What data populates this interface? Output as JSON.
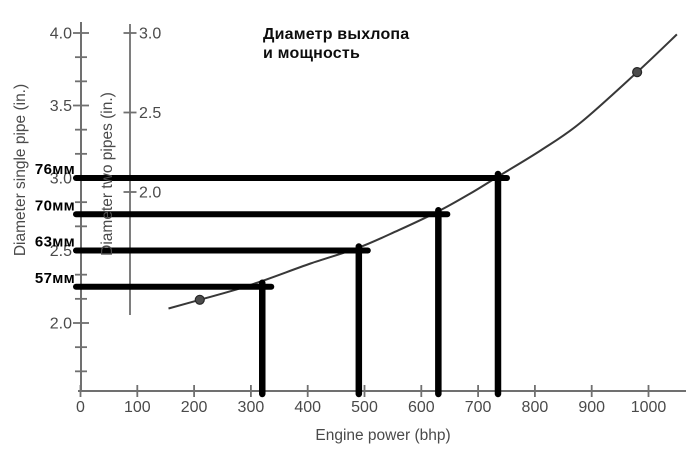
{
  "title": {
    "line1": "Диаметр выхлопа",
    "line2": "и мощность"
  },
  "chart_data": {
    "type": "line",
    "title": "Диаметр выхлопа и мощность",
    "xlabel": "Engine power (bhp)",
    "ylabel_left": "Diameter single pipe (in.)",
    "ylabel_inner": "Diameter two pipes (in.)",
    "x_ticks": [
      0,
      100,
      200,
      300,
      400,
      500,
      600,
      700,
      800,
      900,
      1000
    ],
    "x_range": [
      0,
      1065
    ],
    "y_left_axis": {
      "major_ticks": [
        4.0,
        3.5,
        3.0,
        2.5,
        2.0
      ],
      "minor_ticks_between_majors": 2,
      "range": [
        1.65,
        4.1
      ]
    },
    "y_inner_axis": {
      "ticks": [
        3.0,
        2.5,
        2.0
      ]
    },
    "grid": "off",
    "series": [
      {
        "name": "single-pipe-diameter-vs-power",
        "x": [
          155,
          210,
          265,
          320,
          405,
          490,
          560,
          630,
          685,
          735,
          810,
          880,
          980,
          1050
        ],
        "y": [
          2.1,
          2.16,
          2.22,
          2.29,
          2.41,
          2.52,
          2.64,
          2.77,
          2.89,
          3.01,
          3.19,
          3.38,
          3.73,
          3.99
        ]
      }
    ],
    "marked_points": [
      {
        "x": 210,
        "y": 2.16
      },
      {
        "x": 980,
        "y": 3.73
      }
    ],
    "annotations": [
      {
        "label": "57мм",
        "diameter_in": 2.25,
        "power_bhp": 320
      },
      {
        "label": "63мм",
        "diameter_in": 2.5,
        "power_bhp": 490
      },
      {
        "label": "70мм",
        "diameter_in": 2.75,
        "power_bhp": 630
      },
      {
        "label": "76мм",
        "diameter_in": 3.0,
        "power_bhp": 735
      }
    ]
  },
  "colors": {
    "background": "#ffffff",
    "axis": "#707070",
    "tick_text": "#4a4a4a",
    "curve": "#383838",
    "annotation": "#000000",
    "point_fill": "#4c4c4c",
    "point_stroke": "#262626",
    "title_text": "#0d0d0d"
  }
}
